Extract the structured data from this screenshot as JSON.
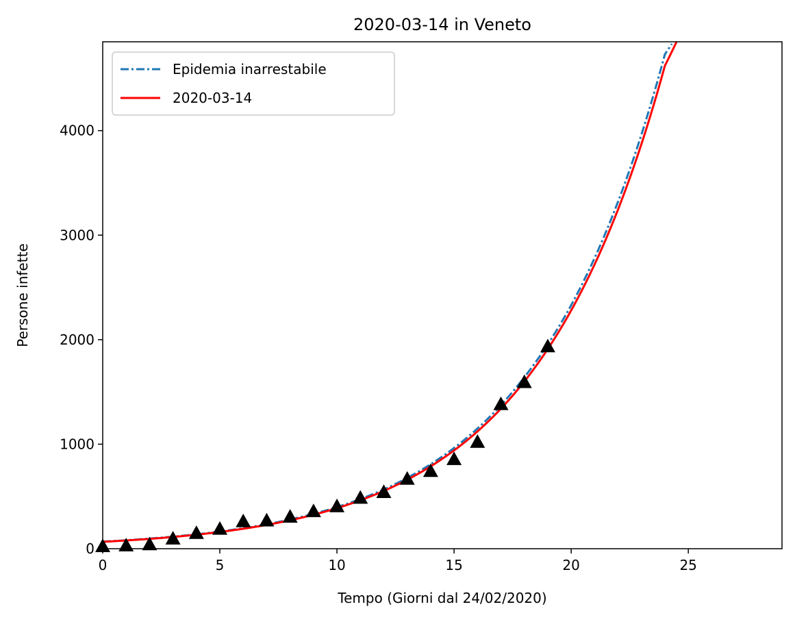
{
  "chart_data": {
    "type": "line",
    "title": "2020-03-14 in Veneto",
    "xlabel": "Tempo (Giorni dal 24/02/2020)",
    "ylabel": "Persone infette",
    "xlim": [
      0,
      29
    ],
    "ylim": [
      0,
      4850
    ],
    "xticks": [
      0,
      5,
      10,
      15,
      20,
      25
    ],
    "yticks": [
      0,
      1000,
      2000,
      3000,
      4000
    ],
    "grid": false,
    "legend": {
      "placement": "top-left",
      "entries": [
        {
          "label": "Epidemia inarrestabile",
          "color": "#1f77b4",
          "style": "dashdot"
        },
        {
          "label": "2020-03-14",
          "color": "#ff0000",
          "style": "solid"
        }
      ]
    },
    "series": [
      {
        "name": "Epidemia inarrestabile",
        "color": "#1f77b4",
        "style": "dashdot",
        "model": "exponential",
        "x_range": [
          0,
          24.3
        ],
        "x": [
          0,
          2,
          4,
          6,
          8,
          10,
          12,
          14,
          16,
          18,
          20,
          22,
          24,
          24.3
        ],
        "y": [
          68,
          97,
          138,
          196,
          280,
          398,
          567,
          808,
          1150,
          1640,
          2330,
          3320,
          4730,
          4830
        ]
      },
      {
        "name": "2020-03-14",
        "color": "#ff0000",
        "style": "solid",
        "model": "exponential",
        "x_range": [
          0,
          24.5
        ],
        "x": [
          0,
          2,
          4,
          6,
          8,
          10,
          12,
          14,
          16,
          18,
          20,
          22,
          24,
          24.5
        ],
        "y": [
          66,
          94,
          134,
          191,
          272,
          388,
          553,
          788,
          1122,
          1600,
          2280,
          3245,
          4620,
          4850
        ]
      }
    ],
    "observed": {
      "marker": "triangle",
      "color": "#000000",
      "x": [
        0,
        1,
        2,
        3,
        4,
        5,
        6,
        7,
        8,
        9,
        10,
        11,
        12,
        13,
        14,
        15,
        16,
        17,
        18,
        19
      ],
      "y": [
        25,
        32,
        43,
        98,
        151,
        191,
        263,
        271,
        307,
        360,
        407,
        488,
        543,
        670,
        744,
        858,
        1023,
        1384,
        1595,
        1937
      ]
    }
  }
}
